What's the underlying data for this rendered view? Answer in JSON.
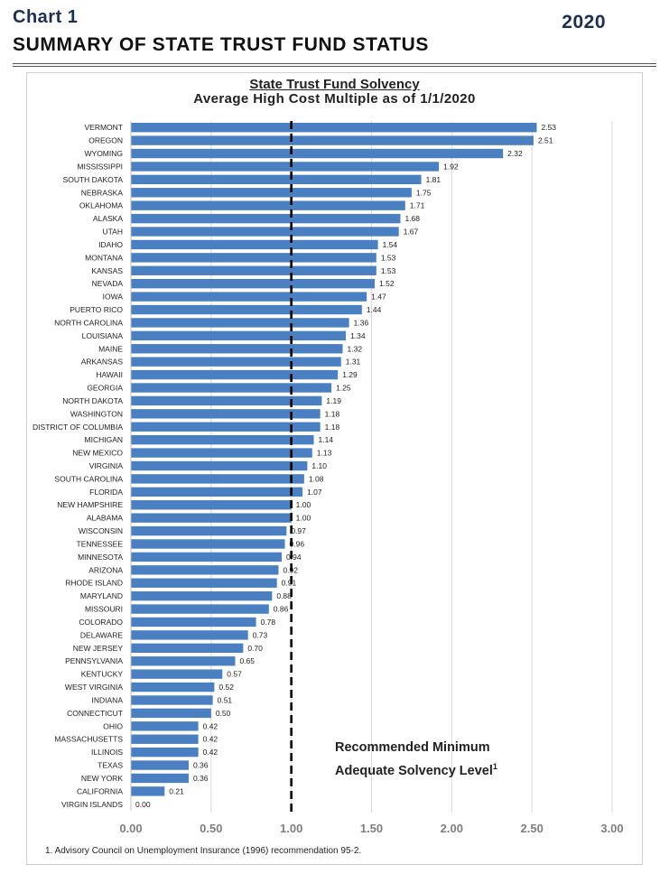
{
  "header": {
    "chart_label": "Chart 1",
    "page_title": "SUMMARY OF STATE TRUST FUND STATUS",
    "year": "2020"
  },
  "footnote": "1. Advisory Council on Unemployment Insurance (1996) recommendation 95-2.",
  "annotation": {
    "line1": "Recommended Minimum",
    "line2": "Adequate Solvency Level",
    "sup": "1"
  },
  "chart_data": {
    "type": "bar",
    "orientation": "horizontal",
    "title": "State Trust Fund Solvency",
    "subtitle": "Average High Cost Multiple as of 1/1/2020",
    "categories": [
      "VERMONT",
      "OREGON",
      "WYOMING",
      "MISSISSIPPI",
      "SOUTH DAKOTA",
      "NEBRASKA",
      "OKLAHOMA",
      "ALASKA",
      "UTAH",
      "IDAHO",
      "MONTANA",
      "KANSAS",
      "NEVADA",
      "IOWA",
      "PUERTO RICO",
      "NORTH CAROLINA",
      "LOUISIANA",
      "MAINE",
      "ARKANSAS",
      "HAWAII",
      "GEORGIA",
      "NORTH DAKOTA",
      "WASHINGTON",
      "DISTRICT OF COLUMBIA",
      "MICHIGAN",
      "NEW MEXICO",
      "VIRGINIA",
      "SOUTH CAROLINA",
      "FLORIDA",
      "NEW HAMPSHIRE",
      "ALABAMA",
      "WISCONSIN",
      "TENNESSEE",
      "MINNESOTA",
      "ARIZONA",
      "RHODE ISLAND",
      "MARYLAND",
      "MISSOURI",
      "COLORADO",
      "DELAWARE",
      "NEW JERSEY",
      "PENNSYLVANIA",
      "KENTUCKY",
      "WEST VIRGINIA",
      "INDIANA",
      "CONNECTICUT",
      "OHIO",
      "MASSACHUSETTS",
      "ILLINOIS",
      "TEXAS",
      "NEW YORK",
      "CALIFORNIA",
      "VIRGIN ISLANDS"
    ],
    "values": [
      2.53,
      2.51,
      2.32,
      1.92,
      1.81,
      1.75,
      1.71,
      1.68,
      1.67,
      1.54,
      1.53,
      1.53,
      1.52,
      1.47,
      1.44,
      1.36,
      1.34,
      1.32,
      1.31,
      1.29,
      1.25,
      1.19,
      1.18,
      1.18,
      1.14,
      1.13,
      1.1,
      1.08,
      1.07,
      1.0,
      1.0,
      0.97,
      0.96,
      0.94,
      0.92,
      0.91,
      0.88,
      0.86,
      0.78,
      0.73,
      0.7,
      0.65,
      0.57,
      0.52,
      0.51,
      0.5,
      0.42,
      0.42,
      0.42,
      0.36,
      0.36,
      0.21,
      0.0
    ],
    "xlim": [
      0,
      3
    ],
    "x_ticks": [
      "0.00",
      "0.50",
      "1.00",
      "1.50",
      "2.00",
      "2.50",
      "3.00"
    ],
    "reference_line": 1.0,
    "bar_color": "#4a7fc1",
    "grid": "vertical"
  }
}
